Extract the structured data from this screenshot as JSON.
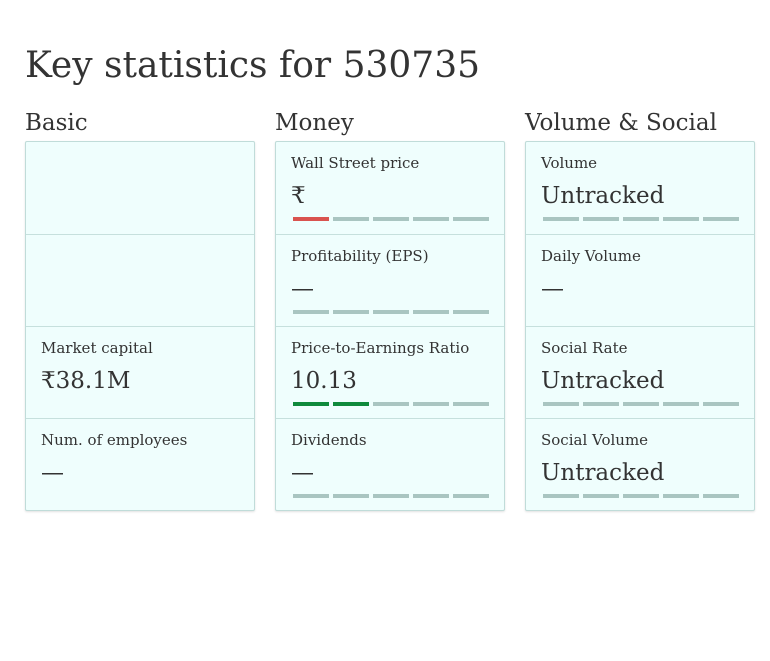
{
  "page": {
    "title": "Key statistics for 530735"
  },
  "colors": {
    "card_background": "#effefd",
    "rating_empty": "#a9c5c1",
    "rating_red": "#d9534f",
    "rating_green": "#0f8a3c"
  },
  "columns": [
    {
      "title": "Basic",
      "stats": [
        {
          "label": "",
          "value": "",
          "rating": null
        },
        {
          "label": "",
          "value": "",
          "rating": null
        },
        {
          "label": "Market capital",
          "value": "₹38.1M",
          "rating": null
        },
        {
          "label": "Num. of employees",
          "value": "—",
          "rating": null
        }
      ]
    },
    {
      "title": "Money",
      "stats": [
        {
          "label": "Wall Street price",
          "value": "₹",
          "rating": {
            "filled": 1,
            "total": 5,
            "color": "#d9534f"
          }
        },
        {
          "label": "Profitability (EPS)",
          "value": "—",
          "rating": {
            "filled": 0,
            "total": 5,
            "color": "#a9c5c1"
          }
        },
        {
          "label": "Price-to-Earnings Ratio",
          "value": "10.13",
          "rating": {
            "filled": 2,
            "total": 5,
            "color": "#0f8a3c"
          }
        },
        {
          "label": "Dividends",
          "value": "—",
          "rating": {
            "filled": 0,
            "total": 5,
            "color": "#a9c5c1"
          }
        }
      ]
    },
    {
      "title": "Volume & Social",
      "stats": [
        {
          "label": "Volume",
          "value": "Untracked",
          "rating": {
            "filled": 0,
            "total": 5,
            "color": "#a9c5c1"
          }
        },
        {
          "label": "Daily Volume",
          "value": "—",
          "rating": null
        },
        {
          "label": "Social Rate",
          "value": "Untracked",
          "rating": {
            "filled": 0,
            "total": 5,
            "color": "#a9c5c1"
          }
        },
        {
          "label": "Social Volume",
          "value": "Untracked",
          "rating": {
            "filled": 0,
            "total": 5,
            "color": "#a9c5c1"
          }
        }
      ]
    }
  ]
}
